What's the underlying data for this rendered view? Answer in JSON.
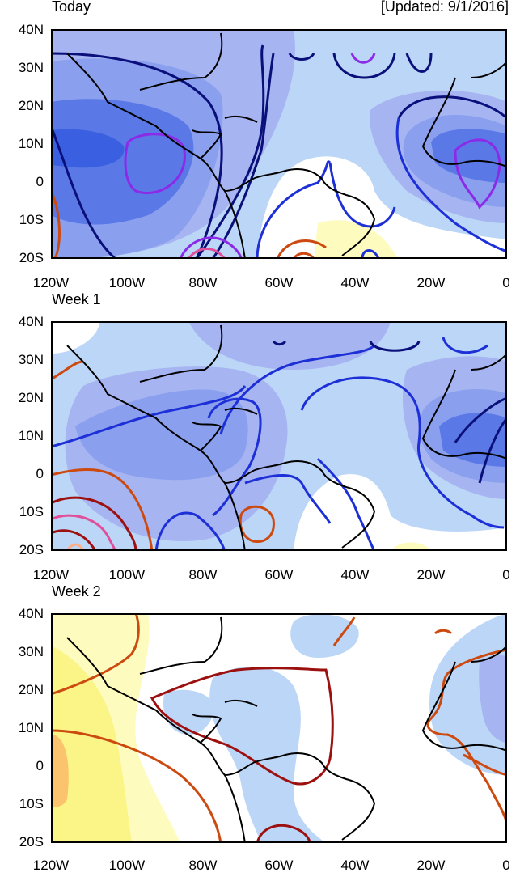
{
  "updated_label": "[Updated: 9/1/2016]",
  "latitude_labels": [
    "40N",
    "30N",
    "20N",
    "10N",
    "0",
    "10S",
    "20S"
  ],
  "longitude_labels": [
    "120W",
    "100W",
    "80W",
    "60W",
    "40W",
    "20W",
    "0"
  ],
  "panels": [
    {
      "title": "Today"
    },
    {
      "title": "Week 1"
    },
    {
      "title": "Week 2"
    }
  ],
  "colors": {
    "negative_shading": [
      "#bcd6f7",
      "#a6b4f1",
      "#8aa0ee",
      "#5a78e6",
      "#3a5fe0"
    ],
    "positive_shading": [
      "#fdfbbd",
      "#fbf487",
      "#fbc36d"
    ],
    "negative_contours": [
      "#0a0f7a",
      "#1d2fd6",
      "#8b2be8"
    ],
    "positive_contours": [
      "#cc4a10",
      "#9c1010",
      "#e0509a"
    ]
  }
}
